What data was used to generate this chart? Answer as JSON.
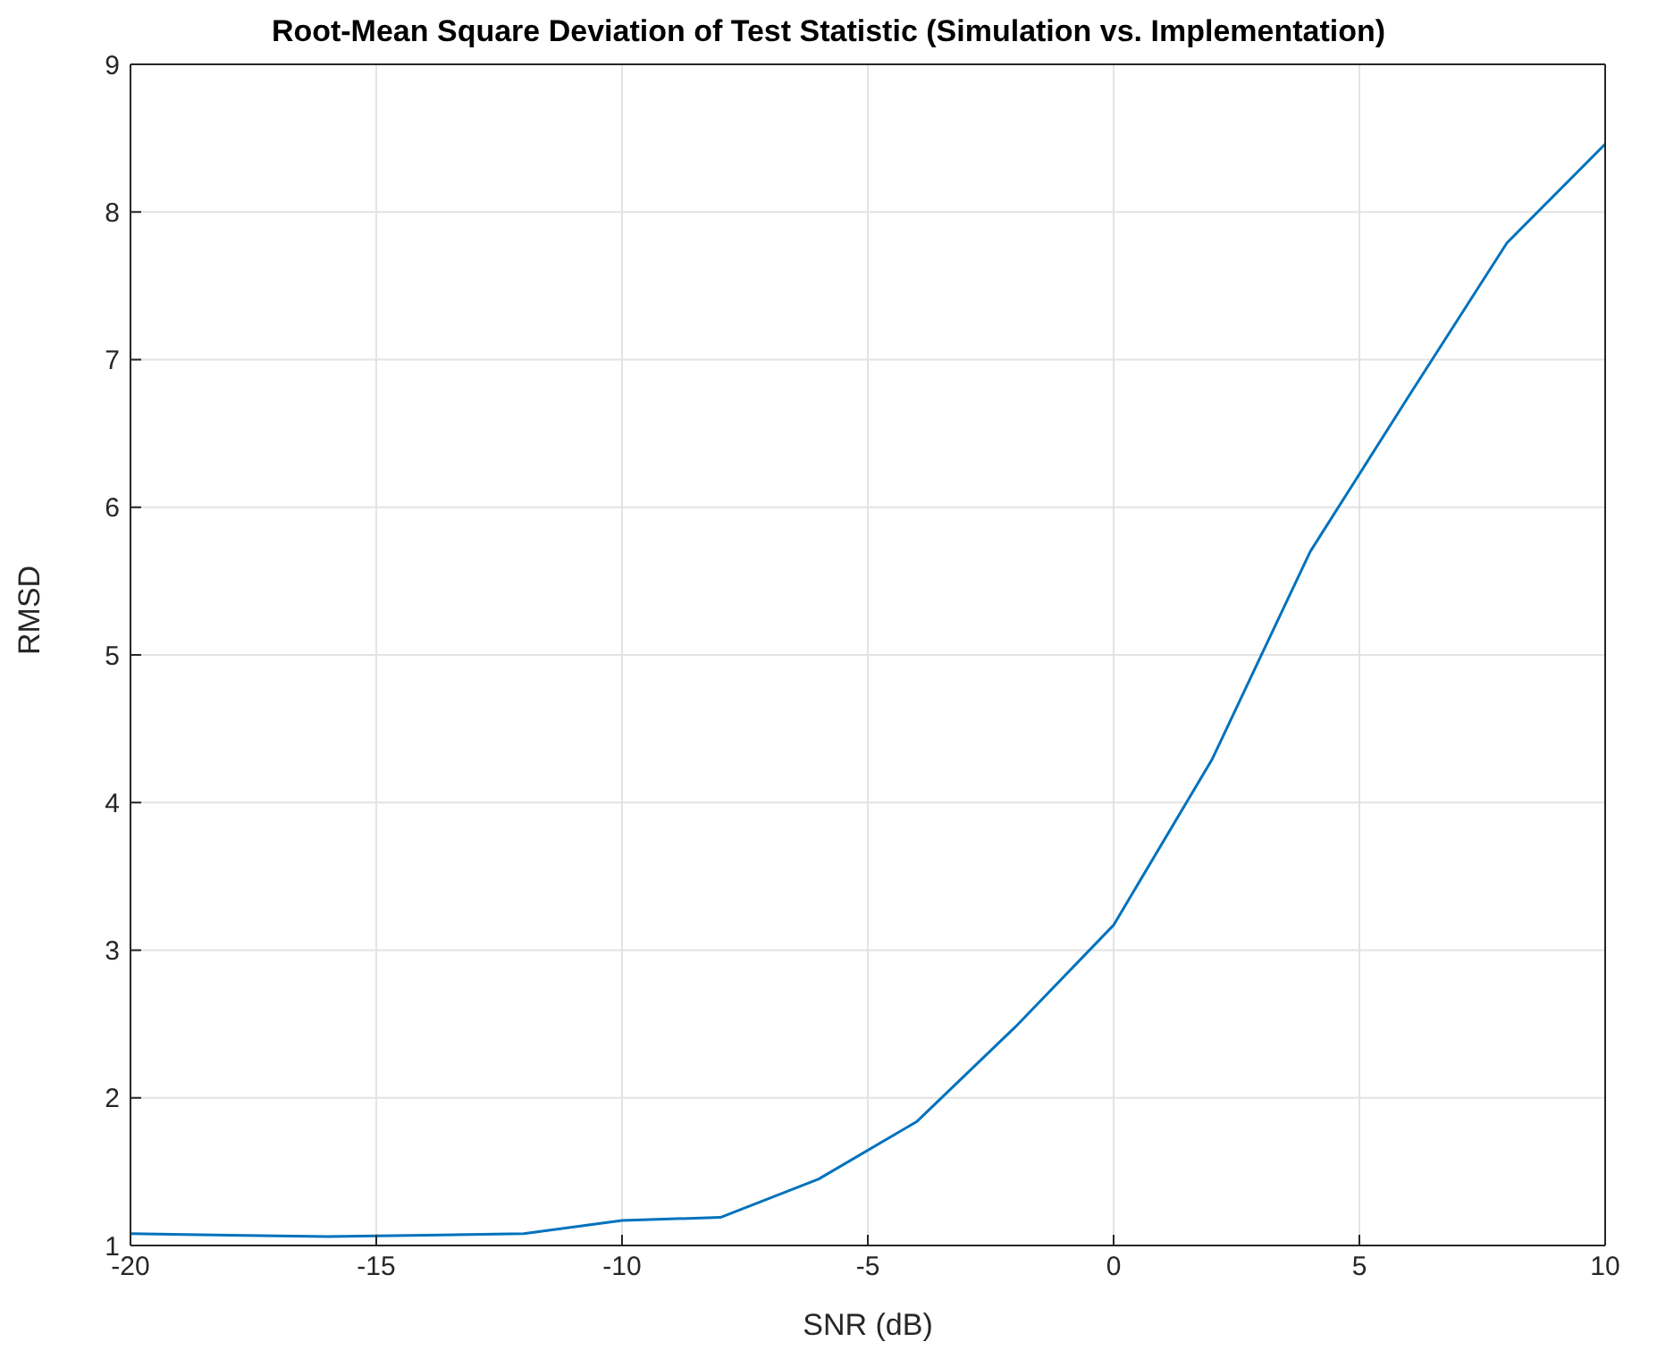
{
  "chart_data": {
    "type": "line",
    "title": "Root-Mean Square Deviation of Test Statistic (Simulation vs. Implementation)",
    "xlabel": "SNR (dB)",
    "ylabel": "RMSD",
    "x": [
      -20,
      -18,
      -16,
      -14,
      -12,
      -10,
      -8,
      -6,
      -4,
      -2,
      0,
      2,
      4,
      6,
      8,
      10
    ],
    "series": [
      {
        "color": "#0072bd",
        "values": [
          1.08,
          1.07,
          1.06,
          1.07,
          1.08,
          1.17,
          1.19,
          1.45,
          1.84,
          2.48,
          3.17,
          4.29,
          5.7,
          6.75,
          7.79,
          8.46
        ]
      }
    ],
    "xlim": [
      -20,
      10
    ],
    "xticks": [
      -20,
      -15,
      -10,
      -5,
      0,
      5,
      10
    ],
    "ylim": [
      1,
      9
    ],
    "yticks": [
      1,
      2,
      3,
      4,
      5,
      6,
      7,
      8,
      9
    ],
    "grid": true,
    "marker": "none",
    "line_style": "solid"
  }
}
